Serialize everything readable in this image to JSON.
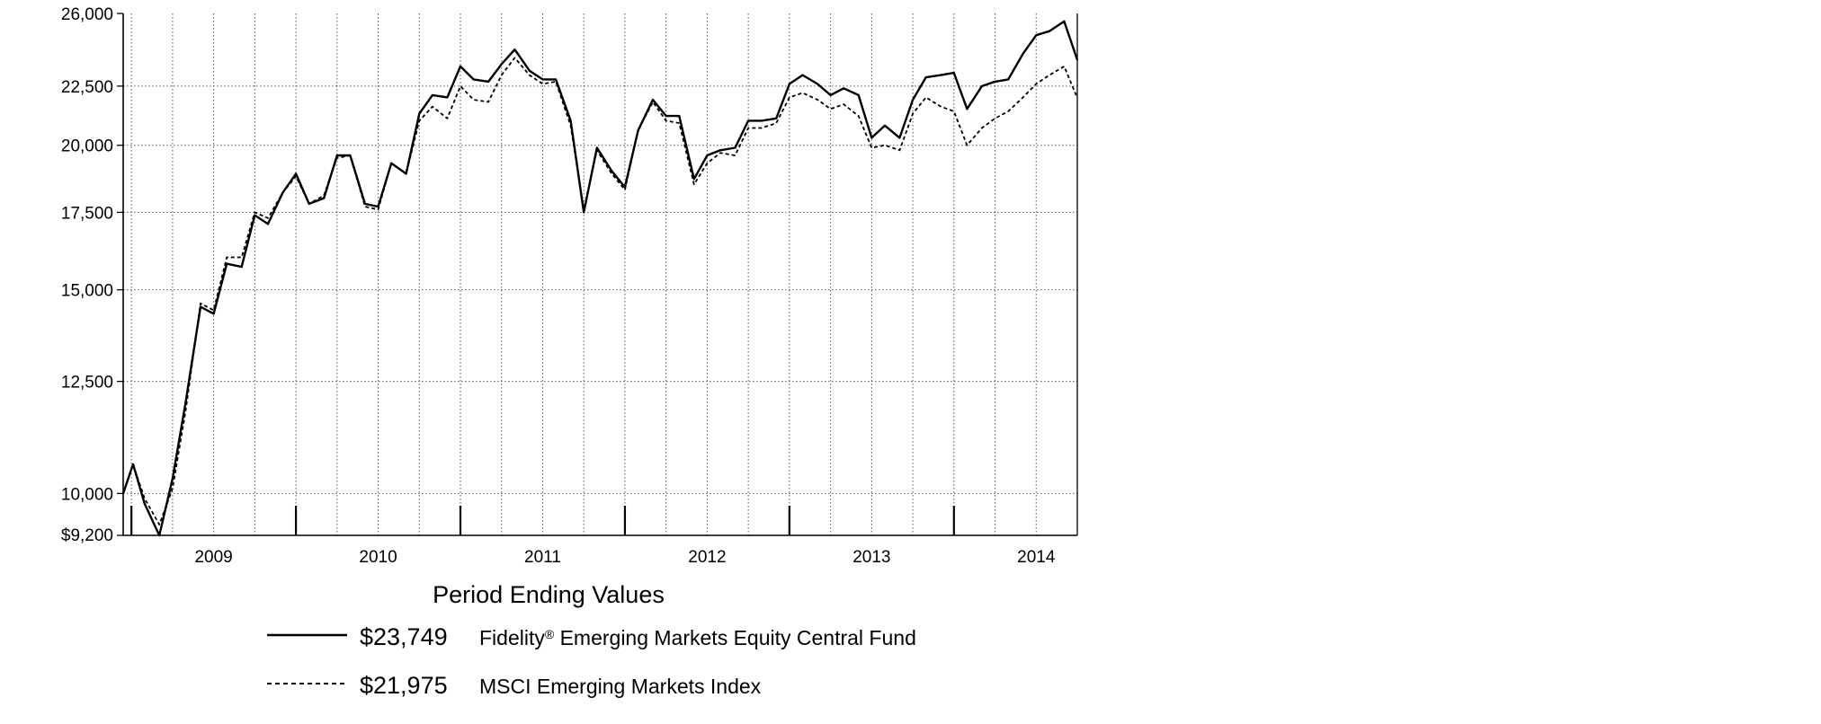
{
  "chart_data": {
    "type": "line",
    "title": "Period Ending Values",
    "x_labels": [
      "2009",
      "2010",
      "2011",
      "2012",
      "2013",
      "2014"
    ],
    "x_range": [
      2008.95,
      2014.75
    ],
    "y_ticks": [
      10000,
      12500,
      15000,
      17500,
      20000,
      22500,
      26000
    ],
    "y_tick_labels": [
      "10,000",
      "12,500",
      "15,000",
      "17,500",
      "20,000",
      "22,500",
      "26,000"
    ],
    "y_min_label": "$9,200",
    "ylim": [
      9200,
      26000
    ],
    "y_scale": "log",
    "grid": true,
    "series": [
      {
        "name": "Fidelity® Emerging Markets Equity Central Fund",
        "name_lines": [
          "Fidelity",
          "®",
          " Emerging Markets Equity Central Fund"
        ],
        "ending_value": "$23,749",
        "style": "solid",
        "color": "#000000",
        "x": [
          2008.95,
          2009.01,
          2009.08,
          2009.17,
          2009.25,
          2009.33,
          2009.42,
          2009.5,
          2009.58,
          2009.67,
          2009.75,
          2009.83,
          2009.92,
          2010.0,
          2010.08,
          2010.17,
          2010.25,
          2010.33,
          2010.42,
          2010.5,
          2010.58,
          2010.67,
          2010.75,
          2010.83,
          2010.92,
          2011.0,
          2011.08,
          2011.17,
          2011.25,
          2011.33,
          2011.42,
          2011.5,
          2011.58,
          2011.67,
          2011.75,
          2011.83,
          2011.92,
          2012.0,
          2012.08,
          2012.17,
          2012.25,
          2012.33,
          2012.42,
          2012.5,
          2012.58,
          2012.67,
          2012.75,
          2012.83,
          2012.92,
          2013.0,
          2013.08,
          2013.17,
          2013.25,
          2013.33,
          2013.42,
          2013.5,
          2013.58,
          2013.67,
          2013.75,
          2013.83,
          2013.92,
          2014.0,
          2014.08,
          2014.17,
          2014.25,
          2014.33,
          2014.42,
          2014.5,
          2014.58,
          2014.67,
          2014.75
        ],
        "values": [
          10000,
          10600,
          9800,
          9200,
          10300,
          12000,
          14500,
          14300,
          15800,
          15700,
          17400,
          17100,
          18200,
          18900,
          17800,
          18000,
          19600,
          19600,
          17800,
          17700,
          19300,
          18900,
          21300,
          22100,
          22000,
          23400,
          22800,
          22700,
          23500,
          24200,
          23200,
          22800,
          22800,
          21000,
          17500,
          19900,
          19000,
          18400,
          20600,
          21900,
          21200,
          21200,
          18700,
          19600,
          19800,
          19900,
          21000,
          21000,
          21100,
          22600,
          23000,
          22600,
          22100,
          22400,
          22100,
          20300,
          20800,
          20300,
          21900,
          22900,
          23000,
          23100,
          21500,
          22500,
          22700,
          22800,
          24000,
          24900,
          25100,
          25600,
          23700
        ]
      },
      {
        "name": "MSCI Emerging Markets Index",
        "ending_value": "$21,975",
        "style": "dashed",
        "color": "#000000",
        "x": [
          2008.95,
          2009.01,
          2009.08,
          2009.17,
          2009.25,
          2009.33,
          2009.42,
          2009.5,
          2009.58,
          2009.67,
          2009.75,
          2009.83,
          2009.92,
          2010.0,
          2010.08,
          2010.17,
          2010.25,
          2010.33,
          2010.42,
          2010.5,
          2010.58,
          2010.67,
          2010.75,
          2010.83,
          2010.92,
          2011.0,
          2011.08,
          2011.17,
          2011.25,
          2011.33,
          2011.42,
          2011.5,
          2011.58,
          2011.67,
          2011.75,
          2011.83,
          2011.92,
          2012.0,
          2012.08,
          2012.17,
          2012.25,
          2012.33,
          2012.42,
          2012.5,
          2012.58,
          2012.67,
          2012.75,
          2012.83,
          2012.92,
          2013.0,
          2013.08,
          2013.17,
          2013.25,
          2013.33,
          2013.42,
          2013.5,
          2013.58,
          2013.67,
          2013.75,
          2013.83,
          2013.92,
          2014.0,
          2014.08,
          2014.17,
          2014.25,
          2014.33,
          2014.42,
          2014.5,
          2014.58,
          2014.67,
          2014.75
        ],
        "values": [
          10000,
          10600,
          9900,
          9400,
          10100,
          11800,
          14600,
          14400,
          16000,
          16000,
          17500,
          17300,
          18200,
          18800,
          17800,
          18100,
          19500,
          19600,
          17700,
          17600,
          19300,
          18900,
          21000,
          21600,
          21100,
          22500,
          21900,
          21800,
          23000,
          23800,
          23000,
          22600,
          22700,
          20800,
          17600,
          19800,
          18900,
          18300,
          20600,
          21800,
          21000,
          20900,
          18500,
          19300,
          19700,
          19600,
          20700,
          20700,
          20900,
          22000,
          22200,
          21900,
          21500,
          21700,
          21200,
          19900,
          20000,
          19800,
          21300,
          22000,
          21600,
          21400,
          20000,
          20700,
          21100,
          21400,
          22000,
          22600,
          23000,
          23400,
          21975
        ]
      }
    ]
  }
}
